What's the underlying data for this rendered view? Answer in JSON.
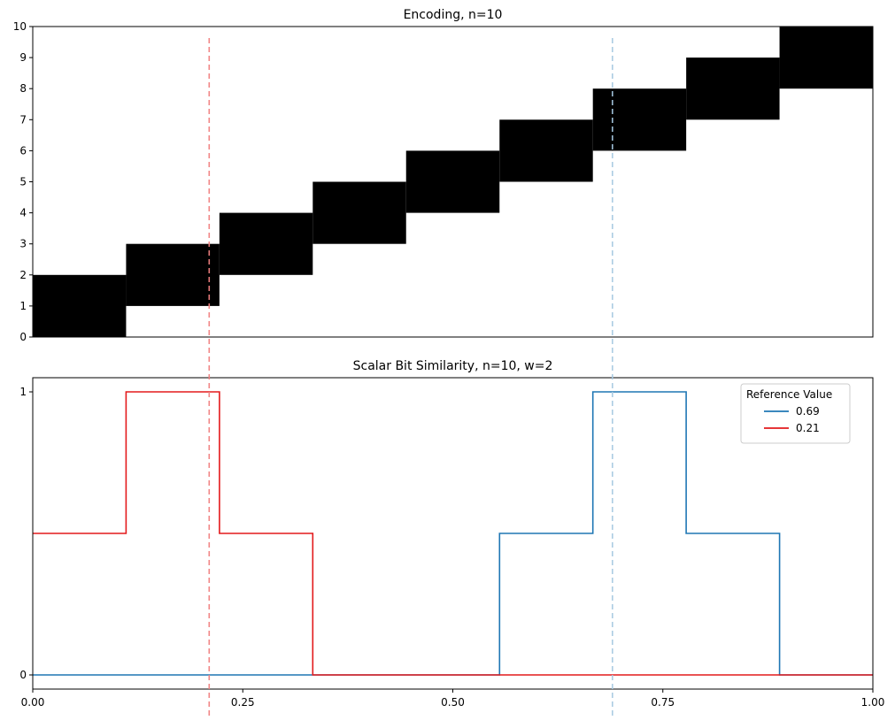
{
  "chart_data": [
    {
      "type": "heatmap",
      "title": "Encoding, n=10",
      "ylim": [
        0,
        10
      ],
      "xlim": [
        0,
        1
      ],
      "yticks": [
        "0",
        "1",
        "2",
        "3",
        "4",
        "5",
        "6",
        "7",
        "8",
        "9",
        "10"
      ],
      "n": 10,
      "w": 2,
      "bands": [
        {
          "x0": 0.0,
          "x1": 0.1111,
          "y0": 0,
          "y1": 2
        },
        {
          "x0": 0.1111,
          "x1": 0.2222,
          "y0": 1,
          "y1": 3
        },
        {
          "x0": 0.2222,
          "x1": 0.3333,
          "y0": 2,
          "y1": 4
        },
        {
          "x0": 0.3333,
          "x1": 0.4444,
          "y0": 3,
          "y1": 5
        },
        {
          "x0": 0.4444,
          "x1": 0.5556,
          "y0": 4,
          "y1": 6
        },
        {
          "x0": 0.5556,
          "x1": 0.6667,
          "y0": 5,
          "y1": 7
        },
        {
          "x0": 0.6667,
          "x1": 0.7778,
          "y0": 6,
          "y1": 8
        },
        {
          "x0": 0.7778,
          "x1": 0.8889,
          "y0": 7,
          "y1": 9
        },
        {
          "x0": 0.8889,
          "x1": 1.0,
          "y0": 8,
          "y1": 10
        }
      ],
      "color": "#000000"
    },
    {
      "type": "line",
      "title": "Scalar Bit Similarity, n=10, w=2",
      "xlim": [
        0,
        1
      ],
      "ylim": [
        -0.05,
        1.05
      ],
      "xticks": [
        "0.00",
        "0.25",
        "0.50",
        "0.75",
        "1.00"
      ],
      "xtick_values": [
        0,
        0.25,
        0.5,
        0.75,
        1.0
      ],
      "yticks": [
        "0",
        "1"
      ],
      "ytick_values": [
        0,
        1
      ],
      "legend": {
        "title": "Reference Value",
        "placement": "top-right"
      },
      "series": [
        {
          "name": "0.69",
          "color": "#1f77b4",
          "points": [
            [
              0,
              0
            ],
            [
              0.5556,
              0
            ],
            [
              0.5556,
              0.5
            ],
            [
              0.6667,
              0.5
            ],
            [
              0.6667,
              1
            ],
            [
              0.7778,
              1
            ],
            [
              0.7778,
              0.5
            ],
            [
              0.8889,
              0.5
            ],
            [
              0.8889,
              0
            ],
            [
              1,
              0
            ]
          ]
        },
        {
          "name": "0.21",
          "color": "#e31a1c",
          "points": [
            [
              0,
              0.5
            ],
            [
              0.1111,
              0.5
            ],
            [
              0.1111,
              1
            ],
            [
              0.2222,
              1
            ],
            [
              0.2222,
              0.5
            ],
            [
              0.3333,
              0.5
            ],
            [
              0.3333,
              0
            ],
            [
              0.5556,
              0
            ],
            [
              0.8889,
              0
            ],
            [
              1,
              0
            ]
          ]
        }
      ]
    }
  ],
  "reference_lines": [
    {
      "x": 0.21,
      "color": "#f08080"
    },
    {
      "x": 0.69,
      "color": "#a6c8e0"
    }
  ]
}
